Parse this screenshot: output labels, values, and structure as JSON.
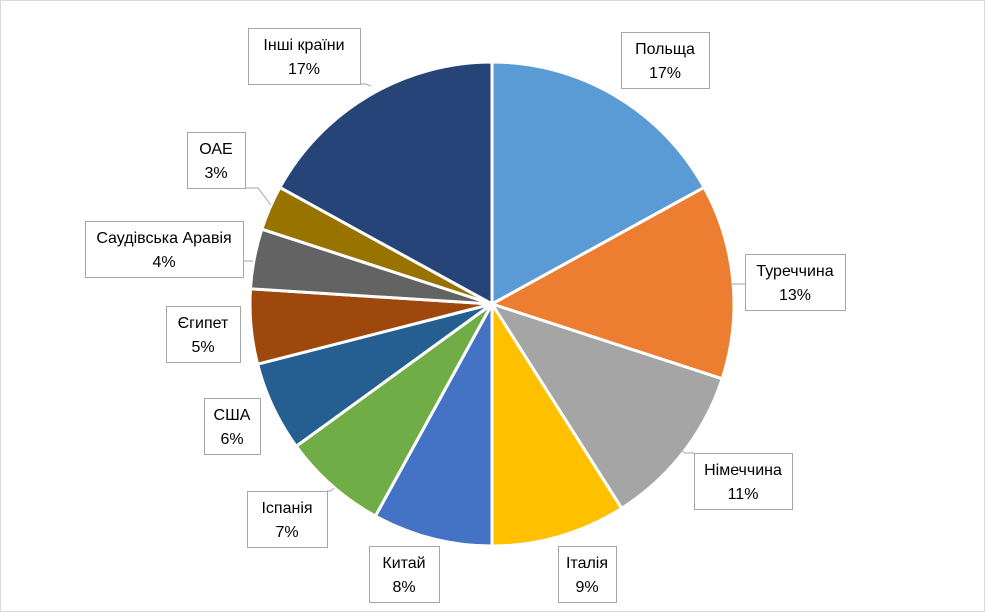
{
  "chart_data": {
    "type": "pie",
    "title": "",
    "start_angle_deg": 0,
    "direction": "clockwise",
    "slices": [
      {
        "label": "Польща",
        "value": 17,
        "value_label": "17%",
        "color": "#5b9bd5"
      },
      {
        "label": "Туреччина",
        "value": 13,
        "value_label": "13%",
        "color": "#ed7d31"
      },
      {
        "label": "Німеччина",
        "value": 11,
        "value_label": "11%",
        "color": "#a5a5a5"
      },
      {
        "label": "Італія",
        "value": 9,
        "value_label": "9%",
        "color": "#ffc000"
      },
      {
        "label": "Китай",
        "value": 8,
        "value_label": "8%",
        "color": "#4472c4"
      },
      {
        "label": "Іспанія",
        "value": 7,
        "value_label": "7%",
        "color": "#70ad47"
      },
      {
        "label": "США",
        "value": 6,
        "value_label": "6%",
        "color": "#255e91"
      },
      {
        "label": "Єгипет",
        "value": 5,
        "value_label": "5%",
        "color": "#9e480e"
      },
      {
        "label": "Саудівська Аравія",
        "value": 4,
        "value_label": "4%",
        "color": "#636363"
      },
      {
        "label": "ОАЕ",
        "value": 3,
        "value_label": "3%",
        "color": "#997300"
      },
      {
        "label": "Інші країни",
        "value": 17,
        "value_label": "17%",
        "color": "#264478"
      }
    ]
  }
}
